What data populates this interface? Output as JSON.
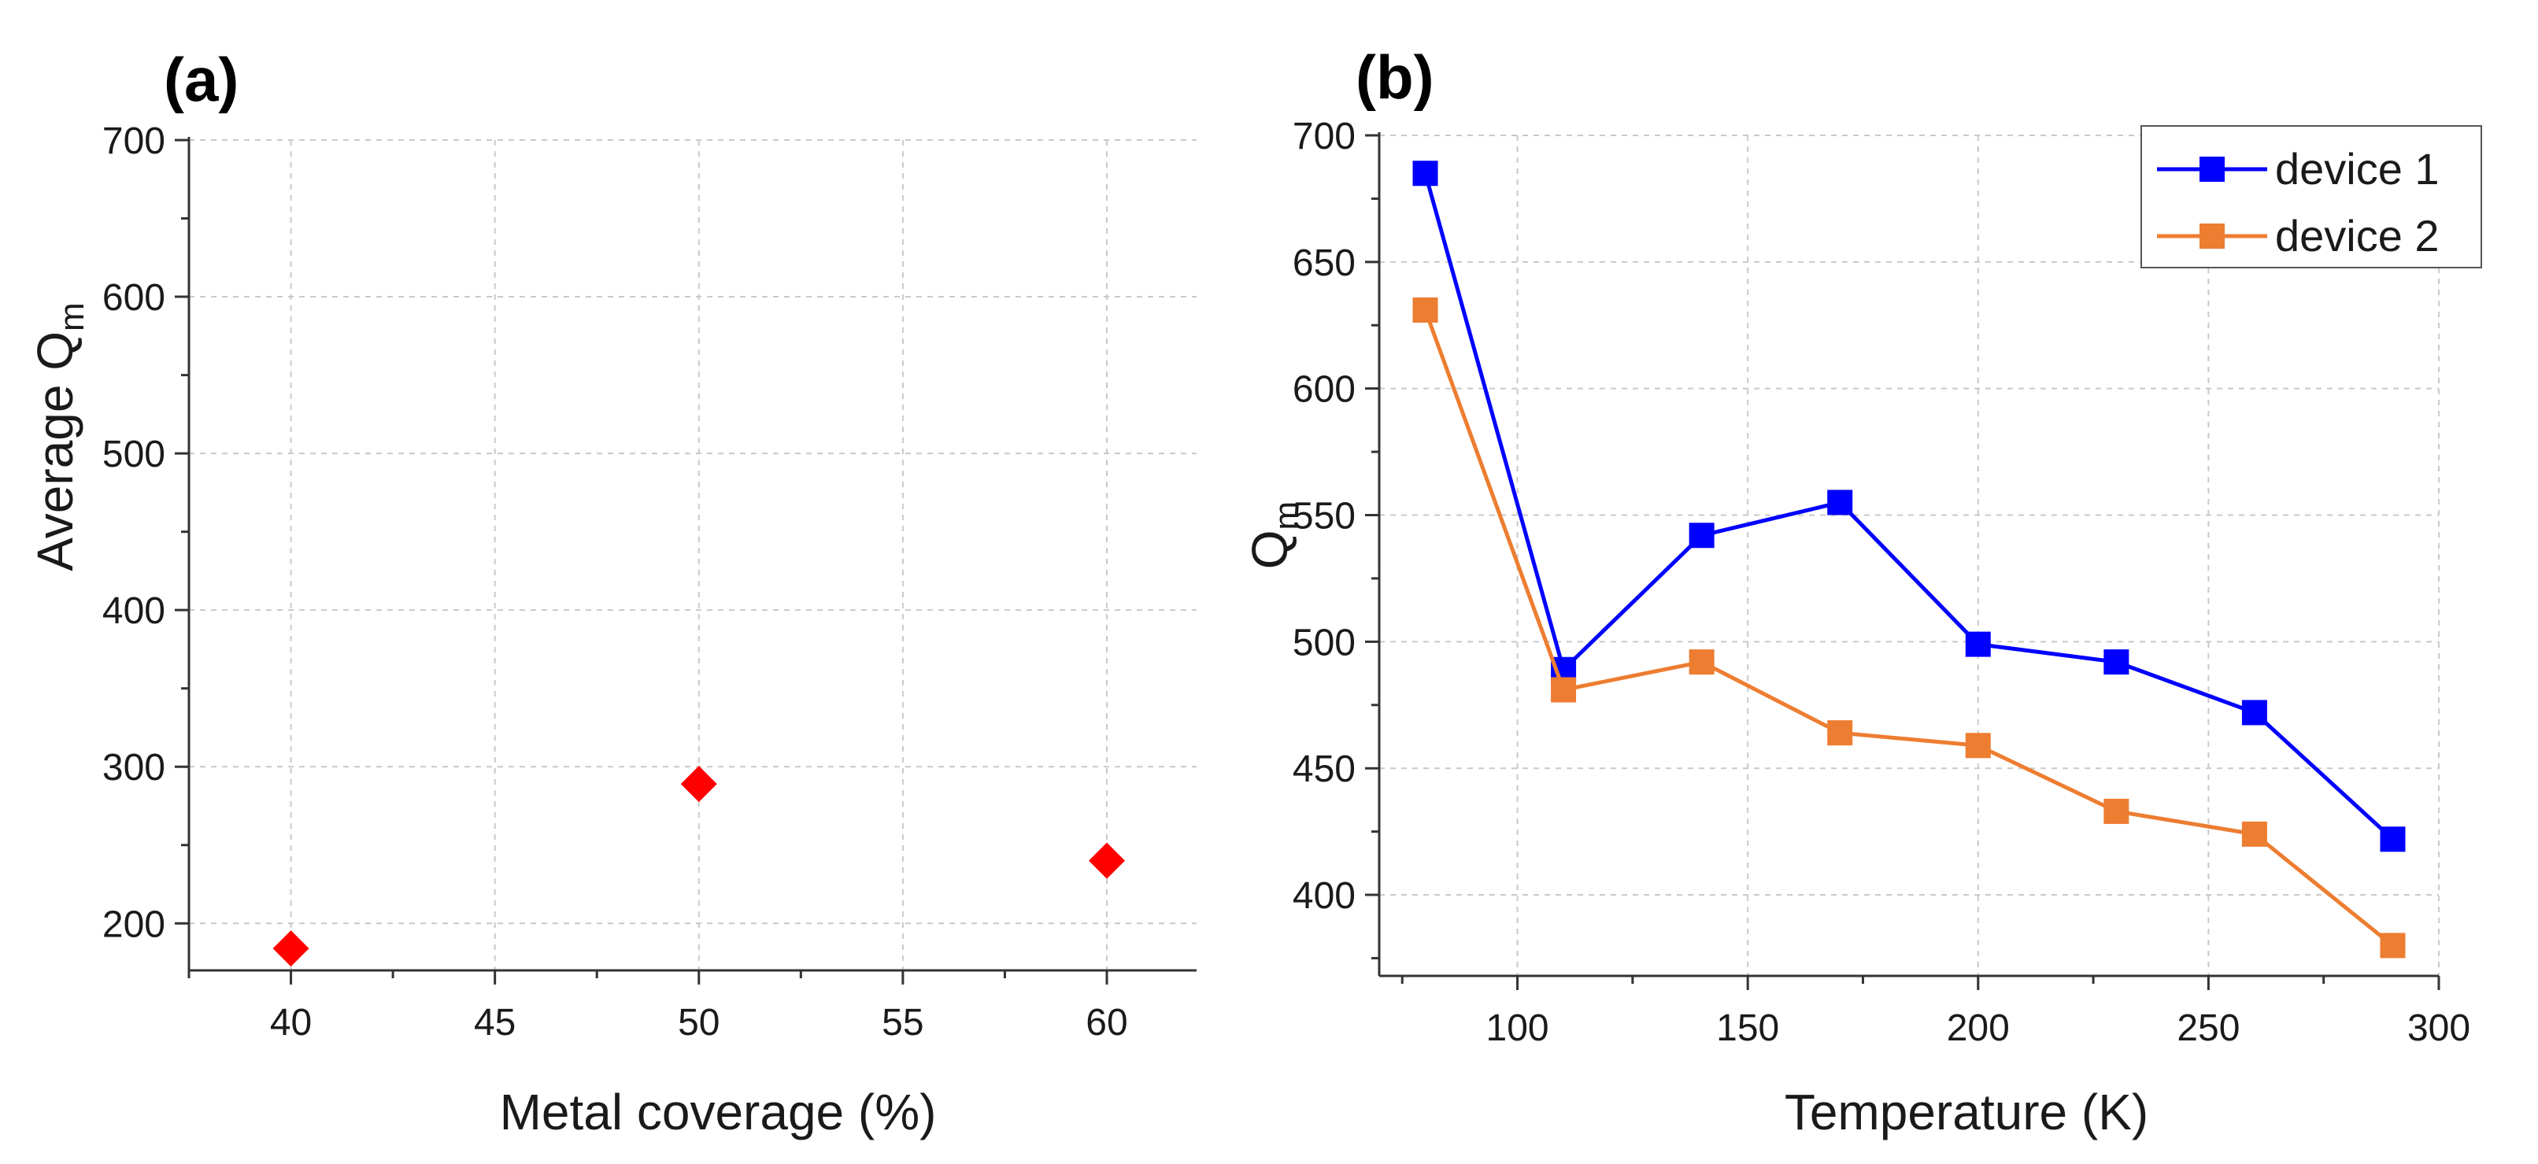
{
  "chart_data": [
    {
      "panel_label": "(a)",
      "type": "scatter",
      "xlabel": "Metal coverage (%)",
      "ylabel_main": "Average Q",
      "ylabel_sub": "m",
      "xlim": [
        37.5,
        62.2
      ],
      "ylim": [
        170,
        700
      ],
      "xticks": [
        40,
        45,
        50,
        55,
        60
      ],
      "yticks": [
        200,
        300,
        400,
        500,
        600,
        700
      ],
      "xtick_labels": [
        "40",
        "45",
        "50",
        "55",
        "60"
      ],
      "ytick_labels": [
        "200",
        "300",
        "400",
        "500",
        "600",
        "700"
      ],
      "grid": true,
      "series": [
        {
          "name": "Average Qm",
          "color": "#ff0000",
          "marker": "diamond",
          "x": [
            40,
            50,
            60
          ],
          "values": [
            184,
            289,
            240
          ]
        }
      ]
    },
    {
      "panel_label": "(b)",
      "type": "line",
      "xlabel": "Temperature (K)",
      "ylabel_main": "Q",
      "ylabel_sub": "m",
      "xlim": [
        70,
        300
      ],
      "ylim": [
        368,
        700
      ],
      "xticks": [
        100,
        150,
        200,
        250,
        300
      ],
      "yticks": [
        400,
        450,
        500,
        550,
        600,
        650,
        700
      ],
      "xtick_labels": [
        "100",
        "150",
        "200",
        "250",
        "300"
      ],
      "ytick_labels": [
        "400",
        "450",
        "500",
        "550",
        "600",
        "650",
        "700"
      ],
      "grid": true,
      "legend_position": "top-right",
      "x": [
        80,
        110,
        140,
        170,
        200,
        230,
        260,
        290
      ],
      "series": [
        {
          "name": "device 1",
          "color": "#0000ff",
          "marker": "square",
          "values": [
            685,
            489,
            542,
            555,
            499,
            492,
            472,
            422
          ]
        },
        {
          "name": "device 2",
          "color": "#ed7d31",
          "marker": "square",
          "values": [
            631,
            481,
            492,
            464,
            459,
            433,
            424,
            380
          ]
        }
      ]
    }
  ]
}
